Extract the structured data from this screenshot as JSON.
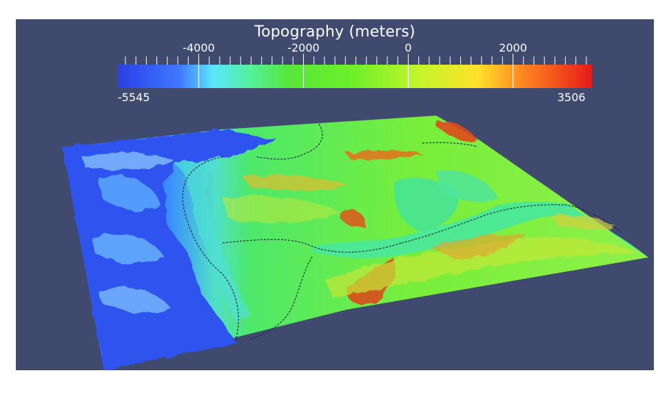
{
  "colorbar": {
    "title": "Topography (meters)",
    "min": -5545,
    "max": 3506,
    "min_label": "-5545",
    "max_label": "3506",
    "ticks": [
      {
        "value": -4000,
        "label": "-4000"
      },
      {
        "value": -2000,
        "label": "-2000"
      },
      {
        "value": 0,
        "label": "0"
      },
      {
        "value": 2000,
        "label": "2000"
      }
    ],
    "colors": [
      "#2a3fe6",
      "#4aa0ff",
      "#5af5f0",
      "#50f07a",
      "#56e632",
      "#8ef52a",
      "#d8f52a",
      "#ffd02a",
      "#ff6a1e",
      "#e81a1a"
    ]
  },
  "background_color": "#3f4a6e"
}
